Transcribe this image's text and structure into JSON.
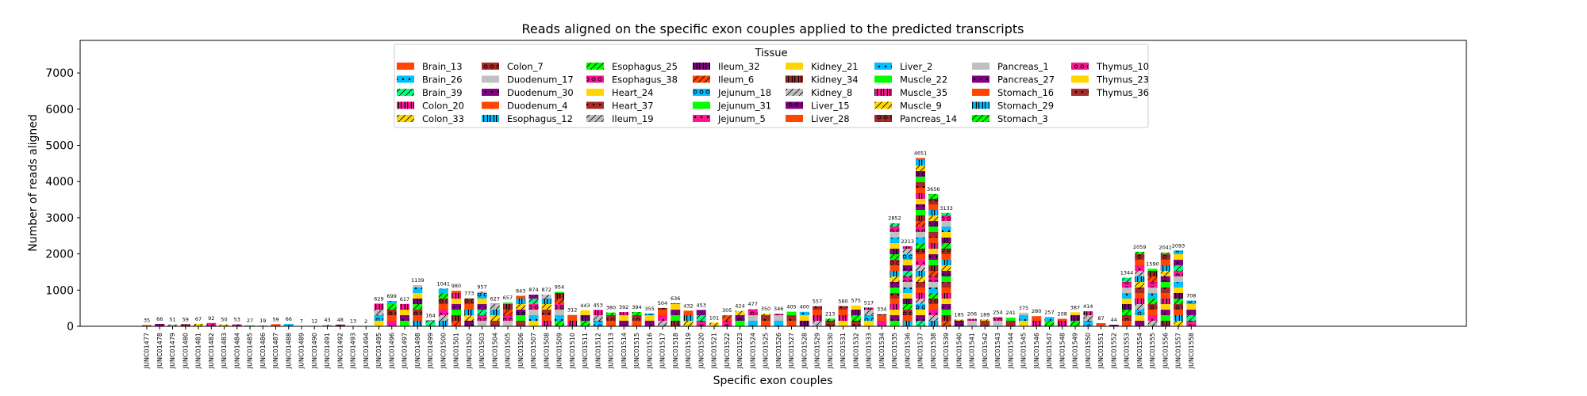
{
  "chart_data": {
    "type": "bar",
    "stacked": true,
    "title": "Reads aligned on the specific exon couples applied to the predicted transcripts",
    "xlabel": "Specific exon couples",
    "ylabel": "Number of reads aligned",
    "ylim": [
      0,
      7900
    ],
    "yticks": [
      0,
      1000,
      2000,
      3000,
      4000,
      5000,
      6000,
      7000
    ],
    "grid": false,
    "legend": {
      "title": "Tissue",
      "placement": "top-center",
      "columns": 8,
      "entries": [
        {
          "name": "Brain_13",
          "color": "#ff4500",
          "pattern": "none"
        },
        {
          "name": "Brain_26",
          "color": "#00bfff",
          "pattern": "dots"
        },
        {
          "name": "Brain_39",
          "color": "#00ff7f",
          "pattern": "slash"
        },
        {
          "name": "Colon_20",
          "color": "#ff1493",
          "pattern": "bars"
        },
        {
          "name": "Colon_33",
          "color": "#ffd700",
          "pattern": "slash"
        },
        {
          "name": "Colon_7",
          "color": "#a52a2a",
          "pattern": "ring"
        },
        {
          "name": "Duodenum_17",
          "color": "#c0c0c0",
          "pattern": "none"
        },
        {
          "name": "Duodenum_30",
          "color": "#800080",
          "pattern": "dots"
        },
        {
          "name": "Duodenum_4",
          "color": "#ff4500",
          "pattern": "none"
        },
        {
          "name": "Esophagus_12",
          "color": "#00bfff",
          "pattern": "bars"
        },
        {
          "name": "Esophagus_25",
          "color": "#00ff00",
          "pattern": "slash"
        },
        {
          "name": "Esophagus_38",
          "color": "#ff1493",
          "pattern": "ring"
        },
        {
          "name": "Heart_24",
          "color": "#ffd700",
          "pattern": "none"
        },
        {
          "name": "Heart_37",
          "color": "#a52a2a",
          "pattern": "dots"
        },
        {
          "name": "Ileum_19",
          "color": "#c0c0c0",
          "pattern": "slash"
        },
        {
          "name": "Ileum_32",
          "color": "#800080",
          "pattern": "bars"
        },
        {
          "name": "Ileum_6",
          "color": "#ff4500",
          "pattern": "slash"
        },
        {
          "name": "Jejunum_18",
          "color": "#00bfff",
          "pattern": "ring"
        },
        {
          "name": "Jejunum_31",
          "color": "#00ff00",
          "pattern": "none"
        },
        {
          "name": "Jejunum_5",
          "color": "#ff1493",
          "pattern": "dots"
        },
        {
          "name": "Kidney_21",
          "color": "#ffd700",
          "pattern": "none"
        },
        {
          "name": "Kidney_34",
          "color": "#a52a2a",
          "pattern": "bars"
        },
        {
          "name": "Kidney_8",
          "color": "#c0c0c0",
          "pattern": "slash"
        },
        {
          "name": "Liver_15",
          "color": "#800080",
          "pattern": "ring"
        },
        {
          "name": "Liver_28",
          "color": "#ff4500",
          "pattern": "none"
        },
        {
          "name": "Liver_2",
          "color": "#00bfff",
          "pattern": "dots"
        },
        {
          "name": "Muscle_22",
          "color": "#00ff00",
          "pattern": "none"
        },
        {
          "name": "Muscle_35",
          "color": "#ff1493",
          "pattern": "bars"
        },
        {
          "name": "Muscle_9",
          "color": "#ffd700",
          "pattern": "slash"
        },
        {
          "name": "Pancreas_14",
          "color": "#a52a2a",
          "pattern": "ring"
        },
        {
          "name": "Pancreas_1",
          "color": "#c0c0c0",
          "pattern": "none"
        },
        {
          "name": "Pancreas_27",
          "color": "#800080",
          "pattern": "dots"
        },
        {
          "name": "Stomach_16",
          "color": "#ff4500",
          "pattern": "none"
        },
        {
          "name": "Stomach_29",
          "color": "#00bfff",
          "pattern": "bars"
        },
        {
          "name": "Stomach_3",
          "color": "#00ff00",
          "pattern": "slash"
        },
        {
          "name": "Thymus_10",
          "color": "#ff1493",
          "pattern": "ring"
        },
        {
          "name": "Thymus_23",
          "color": "#ffd700",
          "pattern": "none"
        },
        {
          "name": "Thymus_36",
          "color": "#a52a2a",
          "pattern": "dots"
        }
      ]
    },
    "categories": [
      "JUNC01477",
      "JUNC01478",
      "JUNC01479",
      "JUNC01480",
      "JUNC01481",
      "JUNC01482",
      "JUNC01483",
      "JUNC01484",
      "JUNC01485",
      "JUNC01486",
      "JUNC01487",
      "JUNC01488",
      "JUNC01489",
      "JUNC01490",
      "JUNC01491",
      "JUNC01492",
      "JUNC01493",
      "JUNC01494",
      "JUNC01495",
      "JUNC01496",
      "JUNC01497",
      "JUNC01498",
      "JUNC01499",
      "JUNC01500",
      "JUNC01501",
      "JUNC01502",
      "JUNC01503",
      "JUNC01504",
      "JUNC01505",
      "JUNC01506",
      "JUNC01507",
      "JUNC01508",
      "JUNC01509",
      "JUNC01510",
      "JUNC01511",
      "JUNC01512",
      "JUNC01513",
      "JUNC01514",
      "JUNC01515",
      "JUNC01516",
      "JUNC01517",
      "JUNC01518",
      "JUNC01519",
      "JUNC01520",
      "JUNC01521",
      "JUNC01522",
      "JUNC01523",
      "JUNC01524",
      "JUNC01525",
      "JUNC01526",
      "JUNC01527",
      "JUNC01528",
      "JUNC01529",
      "JUNC01530",
      "JUNC01531",
      "JUNC01532",
      "JUNC01533",
      "JUNC01534",
      "JUNC01535",
      "JUNC01536",
      "JUNC01537",
      "JUNC01538",
      "JUNC01539",
      "JUNC01540",
      "JUNC01541",
      "JUNC01542",
      "JUNC01543",
      "JUNC01544",
      "JUNC01545",
      "JUNC01546",
      "JUNC01547",
      "JUNC01548",
      "JUNC01549",
      "JUNC01550",
      "JUNC01551",
      "JUNC01552",
      "JUNC01553",
      "JUNC01554",
      "JUNC01555",
      "JUNC01556",
      "JUNC01557",
      "JUNC01558"
    ],
    "totals": [
      35,
      66,
      51,
      59,
      67,
      92,
      50,
      53,
      27,
      19,
      59,
      66,
      7,
      12,
      43,
      48,
      13,
      2,
      629,
      699,
      617,
      1139,
      164,
      1041,
      980,
      773,
      957,
      627,
      657,
      843,
      874,
      872,
      954,
      312,
      443,
      453,
      380,
      392,
      394,
      355,
      504,
      636,
      432,
      453,
      101,
      305,
      424,
      477,
      350,
      346,
      405,
      400,
      557,
      213,
      560,
      575,
      517,
      334,
      2852,
      2213,
      4651,
      3656,
      3133,
      185,
      206,
      189,
      254,
      241,
      375,
      280,
      257,
      208,
      387,
      414,
      87,
      44,
      1344,
      2059,
      1590,
      2041,
      2093,
      708
    ]
  }
}
